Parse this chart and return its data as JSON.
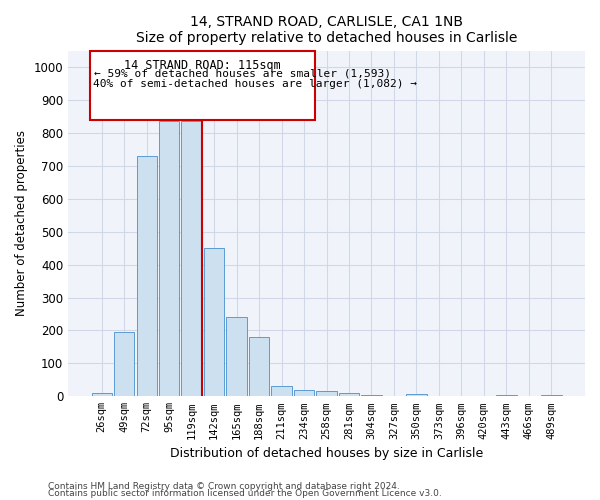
{
  "title": "14, STRAND ROAD, CARLISLE, CA1 1NB",
  "subtitle": "Size of property relative to detached houses in Carlisle",
  "xlabel": "Distribution of detached houses by size in Carlisle",
  "ylabel": "Number of detached properties",
  "footnote1": "Contains HM Land Registry data © Crown copyright and database right 2024.",
  "footnote2": "Contains public sector information licensed under the Open Government Licence v3.0.",
  "categories": [
    "26sqm",
    "49sqm",
    "72sqm",
    "95sqm",
    "119sqm",
    "142sqm",
    "165sqm",
    "188sqm",
    "211sqm",
    "234sqm",
    "258sqm",
    "281sqm",
    "304sqm",
    "327sqm",
    "350sqm",
    "373sqm",
    "396sqm",
    "420sqm",
    "443sqm",
    "466sqm",
    "489sqm"
  ],
  "values": [
    10,
    195,
    730,
    835,
    835,
    450,
    240,
    180,
    30,
    18,
    15,
    10,
    5,
    0,
    8,
    0,
    0,
    0,
    5,
    0,
    5
  ],
  "property_index": 4,
  "property_label": "14 STRAND ROAD: 115sqm",
  "annotation_line1": "← 59% of detached houses are smaller (1,593)",
  "annotation_line2": "40% of semi-detached houses are larger (1,082) →",
  "bar_color": "#cce0f0",
  "bar_edge_color": "#5b9bd5",
  "line_color": "#cc0000",
  "ylim": [
    0,
    1050
  ],
  "yticks": [
    0,
    100,
    200,
    300,
    400,
    500,
    600,
    700,
    800,
    900,
    1000
  ],
  "annotation_box_color": "#cc0000",
  "grid_color": "#d0d8e8",
  "background_color": "#f0f4fa"
}
